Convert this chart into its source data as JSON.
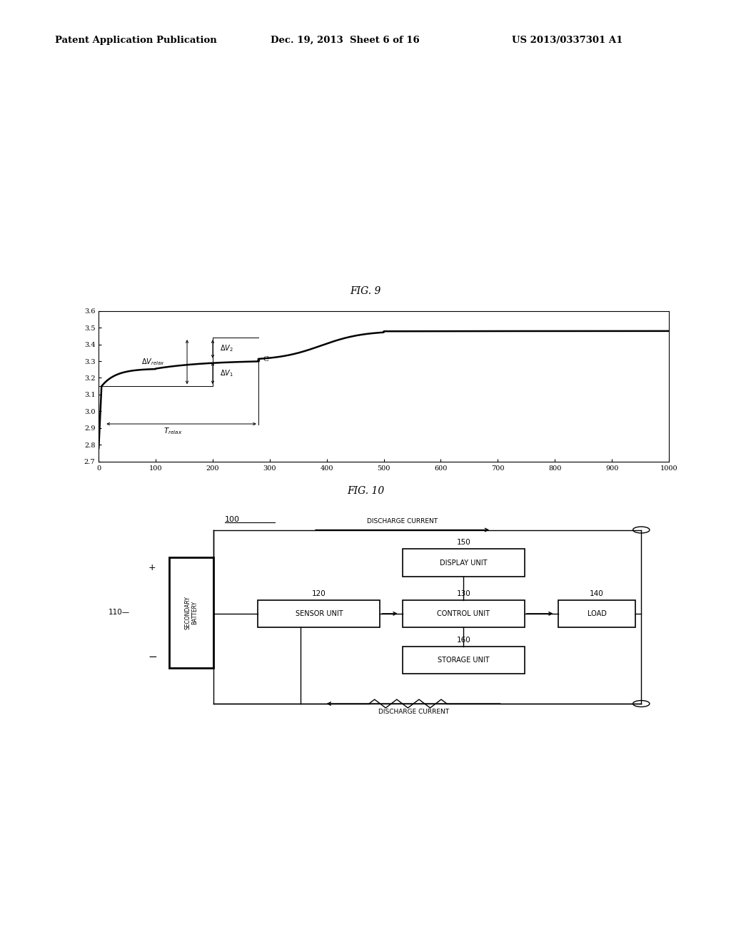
{
  "header_left": "Patent Application Publication",
  "header_mid": "Dec. 19, 2013  Sheet 6 of 16",
  "header_right": "US 2013/0337301 A1",
  "fig9_title": "FIG. 9",
  "fig10_title": "FIG. 10",
  "fig9_ylim": [
    2.7,
    3.6
  ],
  "fig9_xlim": [
    0,
    1000
  ],
  "fig9_yticks": [
    2.7,
    2.8,
    2.9,
    3.0,
    3.1,
    3.2,
    3.3,
    3.4,
    3.5,
    3.6
  ],
  "fig9_xticks": [
    0,
    100,
    200,
    300,
    400,
    500,
    600,
    700,
    800,
    900,
    1000
  ],
  "background_color": "#ffffff",
  "line_color": "#000000"
}
